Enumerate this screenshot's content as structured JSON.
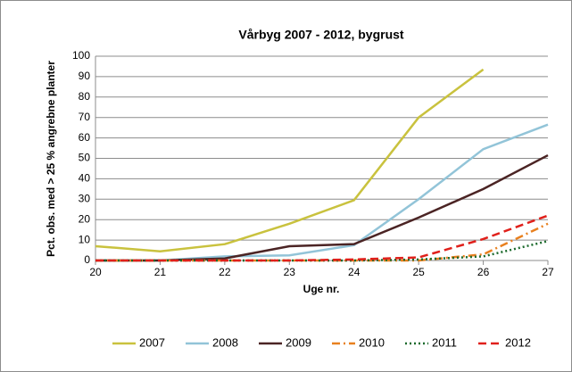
{
  "chart_data": {
    "type": "line",
    "title": "Vårbyg 2007 - 2012, bygrust",
    "x_label": "Uge nr.",
    "y_label": "Pct. obs. med > 25 % angrebne planter",
    "x": [
      20,
      21,
      22,
      23,
      24,
      25,
      26,
      27
    ],
    "xlim": [
      20,
      27
    ],
    "xticks": [
      20,
      21,
      22,
      23,
      24,
      25,
      26,
      27
    ],
    "ylim": [
      0,
      100
    ],
    "yticks": [
      0,
      10,
      20,
      30,
      40,
      50,
      60,
      70,
      80,
      90,
      100
    ],
    "grid": true,
    "legend": "bottom",
    "series": [
      {
        "name": "2007",
        "color": "#c9c23e",
        "style": "solid",
        "values": [
          7,
          4.5,
          8,
          18,
          29.5,
          70,
          93.5,
          null
        ]
      },
      {
        "name": "2008",
        "color": "#92c4d8",
        "style": "solid",
        "values": [
          0,
          0,
          2,
          2.5,
          7.5,
          30,
          54.5,
          66.5
        ]
      },
      {
        "name": "2009",
        "color": "#4b2424",
        "style": "solid",
        "values": [
          0,
          0,
          1,
          7,
          8,
          21,
          35,
          51.5
        ]
      },
      {
        "name": "2010",
        "color": "#e8801f",
        "style": "dashdot",
        "values": [
          0,
          0,
          0,
          0,
          0,
          0,
          3,
          18
        ]
      },
      {
        "name": "2011",
        "color": "#1b6a2c",
        "style": "dotted",
        "values": [
          0,
          0,
          0,
          0,
          0,
          0.5,
          2,
          9.5
        ]
      },
      {
        "name": "2012",
        "color": "#e0201b",
        "style": "dashed",
        "values": [
          0,
          0,
          0,
          0,
          0.5,
          1.5,
          10.5,
          22
        ]
      }
    ]
  }
}
